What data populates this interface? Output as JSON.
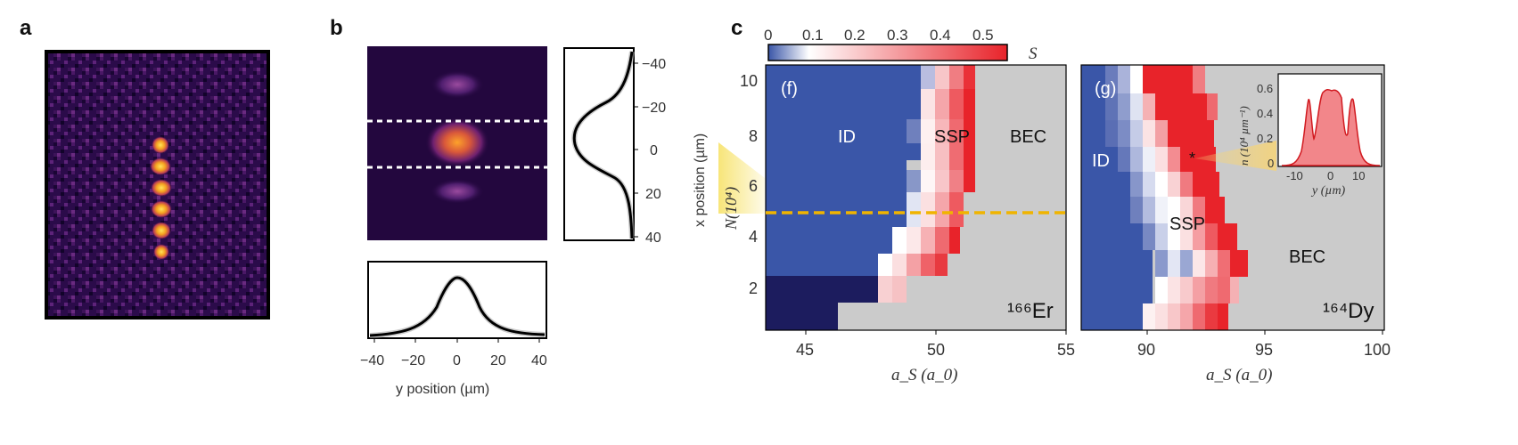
{
  "panels": {
    "a": {
      "label": "a"
    },
    "b": {
      "label": "b",
      "x_axis_label": "x position (µm)",
      "x_ticks": [
        "−40",
        "−20",
        "0",
        "20",
        "40"
      ],
      "y_axis_label": "y position (µm)",
      "y_ticks": [
        "−40",
        "−20",
        "0",
        "20",
        "40"
      ]
    },
    "c": {
      "label": "c",
      "colorbar": {
        "symbol": "S",
        "ticks": [
          "0",
          "0.1",
          "0.2",
          "0.3",
          "0.4",
          "0.5"
        ],
        "range": [
          0,
          0.55
        ]
      },
      "y_axis_label": "N(10⁴)",
      "y_ticks": [
        "2",
        "4",
        "6",
        "8",
        "10"
      ],
      "colors": {
        "id_blue": "#3a56a8",
        "dark_blue": "#1c1c5e",
        "red": "#e8232a",
        "bec_gray": "#cbcbcb",
        "yellow": "#f0b400"
      },
      "er": {
        "tag": "(f)",
        "species": "¹⁶⁶Er",
        "regions": [
          "ID",
          "SSP",
          "BEC"
        ],
        "x_ticks": [
          "45",
          "50",
          "55"
        ],
        "x_axis_label": "a_S (a_0)"
      },
      "dy": {
        "tag": "(g)",
        "species": "¹⁶⁴Dy",
        "regions": [
          "ID",
          "SSP",
          "BEC"
        ],
        "x_ticks": [
          "90",
          "95",
          "100"
        ],
        "x_axis_label": "a_S (a_0)",
        "marker": "*"
      },
      "inset": {
        "y_axis_label": "n (10⁴ µm⁻¹)",
        "y_ticks": [
          "0",
          "0.2",
          "0.4",
          "0.6"
        ],
        "x_ticks": [
          "-10",
          "0",
          "10"
        ],
        "x_axis_label": "y (µm)"
      }
    }
  }
}
